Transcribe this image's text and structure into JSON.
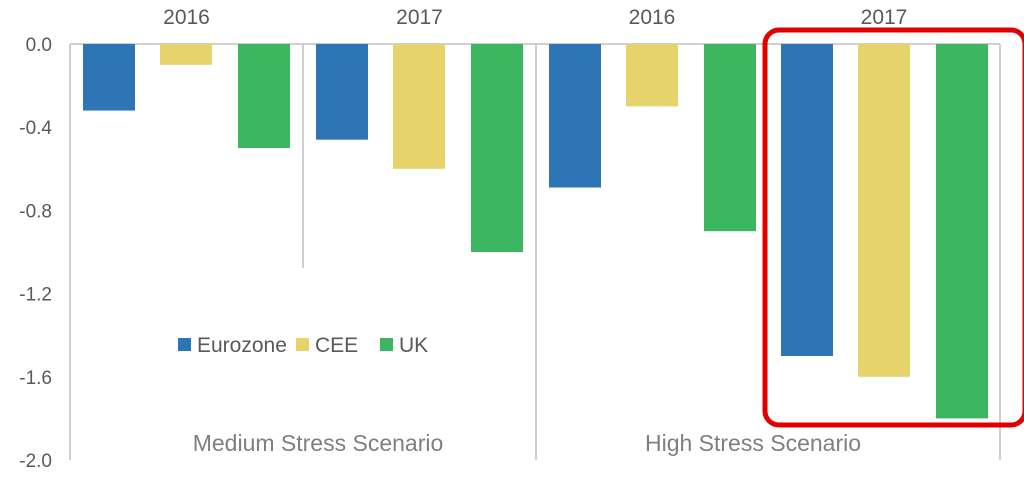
{
  "chart_data": {
    "type": "bar",
    "ylim": [
      -2.0,
      0.0
    ],
    "yticks": [
      0.0,
      -0.4,
      -0.8,
      -1.2,
      -1.6,
      -2.0
    ],
    "ytick_labels": [
      "0.0",
      "-0.4",
      "-0.8",
      "-1.2",
      "-1.6",
      "-2.0"
    ],
    "series": [
      {
        "name": "Eurozone",
        "color": "#2e75b6",
        "values": [
          -0.32,
          -0.46,
          -0.69,
          -1.5
        ]
      },
      {
        "name": "CEE",
        "color": "#e6d36b",
        "values": [
          -0.1,
          -0.6,
          -0.3,
          -1.6
        ]
      },
      {
        "name": "UK",
        "color": "#3bb560",
        "values": [
          -0.5,
          -1.0,
          -0.9,
          -1.8
        ]
      }
    ],
    "groups": [
      {
        "year": "2016",
        "scenario": 0
      },
      {
        "year": "2017",
        "scenario": 0
      },
      {
        "year": "2016",
        "scenario": 1
      },
      {
        "year": "2017",
        "scenario": 1
      }
    ],
    "scenarios": [
      "Medium Stress Scenario",
      "High Stress Scenario"
    ],
    "highlight_group": 3,
    "highlight_color": "#e00000",
    "legend_placement": "lower-left inside plot",
    "grid": false
  }
}
